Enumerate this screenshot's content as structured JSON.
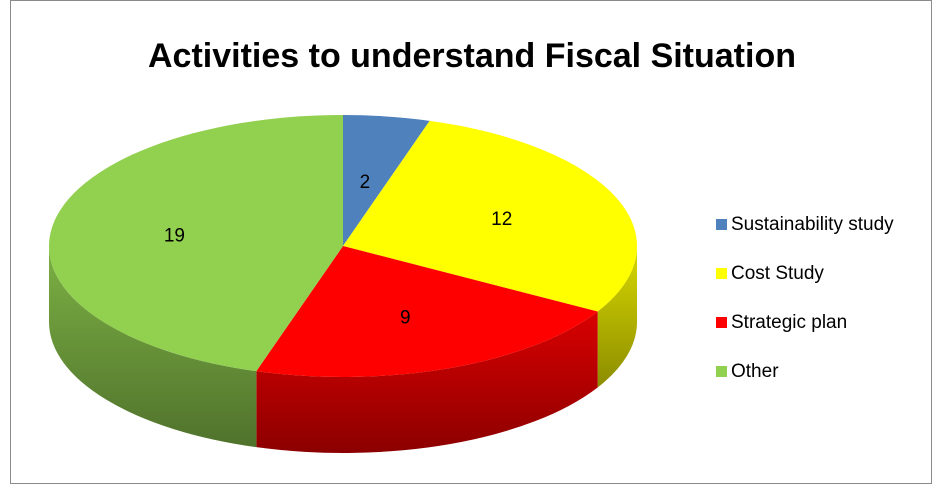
{
  "chart_data": {
    "type": "pie",
    "title": "Activities to understand Fiscal Situation",
    "categories": [
      "Sustainability study",
      "Cost Study",
      "Strategic plan",
      "Other"
    ],
    "values": [
      2,
      12,
      9,
      19
    ],
    "colors": [
      "#4f81bd",
      "#ffff00",
      "#ff0000",
      "#92d050"
    ],
    "legend_position": "right",
    "three_d": true
  }
}
